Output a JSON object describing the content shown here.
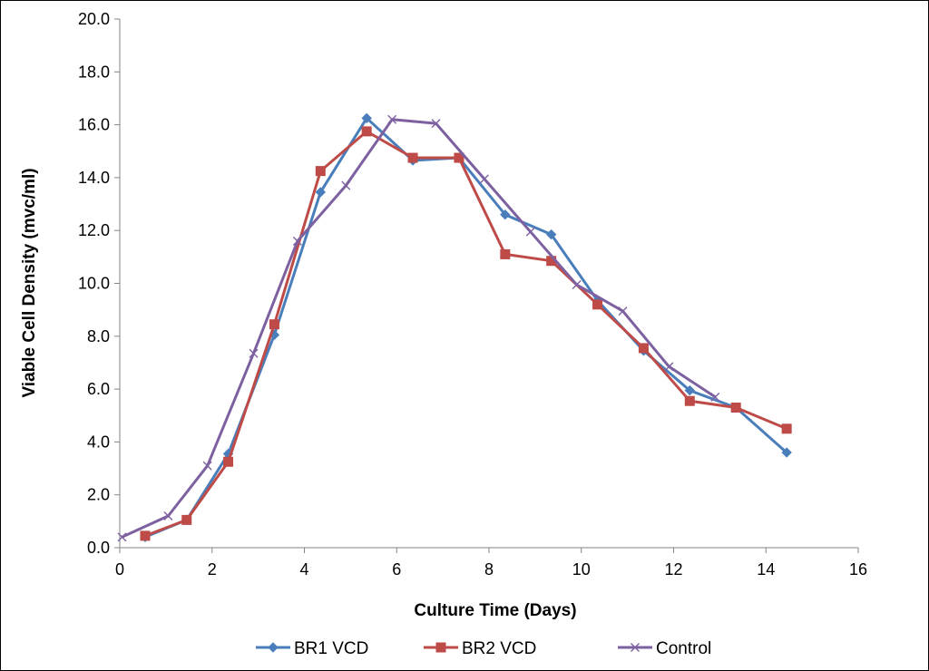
{
  "chart_data": {
    "type": "line",
    "title": "",
    "xlabel": "Culture Time (Days)",
    "ylabel": "Viable Cell Density (mvc/ml)",
    "xlim": [
      0,
      16
    ],
    "ylim": [
      0,
      20
    ],
    "x_ticks": [
      "0",
      "2",
      "4",
      "6",
      "8",
      "10",
      "12",
      "14",
      "16"
    ],
    "y_ticks": [
      "0.0",
      "2.0",
      "4.0",
      "6.0",
      "8.0",
      "10.0",
      "12.0",
      "14.0",
      "16.0",
      "18.0",
      "20.0"
    ],
    "grid": false,
    "legend_position": "bottom",
    "series": [
      {
        "name": "BR1 VCD",
        "color": "#4a7ebb",
        "marker": "diamond",
        "x": [
          0.55,
          1.45,
          2.35,
          3.35,
          4.35,
          5.35,
          6.35,
          7.35,
          8.35,
          9.35,
          10.35,
          11.35,
          12.35,
          13.35,
          14.45
        ],
        "y": [
          0.4,
          1.05,
          3.55,
          8.05,
          13.45,
          16.25,
          14.65,
          14.75,
          12.6,
          11.85,
          9.35,
          7.45,
          5.95,
          5.3,
          3.6
        ]
      },
      {
        "name": "BR2 VCD",
        "color": "#be4b48",
        "marker": "square",
        "x": [
          0.55,
          1.45,
          2.35,
          3.35,
          4.35,
          5.35,
          6.35,
          7.35,
          8.35,
          9.35,
          10.35,
          11.35,
          12.35,
          13.35,
          14.45
        ],
        "y": [
          0.45,
          1.05,
          3.25,
          8.45,
          14.25,
          15.75,
          14.75,
          14.75,
          11.1,
          10.85,
          9.2,
          7.55,
          5.55,
          5.3,
          4.5
        ]
      },
      {
        "name": "Control",
        "color": "#7d60a0",
        "marker": "x",
        "x": [
          0.05,
          1.05,
          1.9,
          2.9,
          3.85,
          4.9,
          5.9,
          6.85,
          7.9,
          8.9,
          9.9,
          10.9,
          11.9,
          12.9
        ],
        "y": [
          0.4,
          1.2,
          3.1,
          7.35,
          11.6,
          13.7,
          16.2,
          16.05,
          13.95,
          11.95,
          9.95,
          8.95,
          6.85,
          5.7
        ]
      }
    ]
  }
}
